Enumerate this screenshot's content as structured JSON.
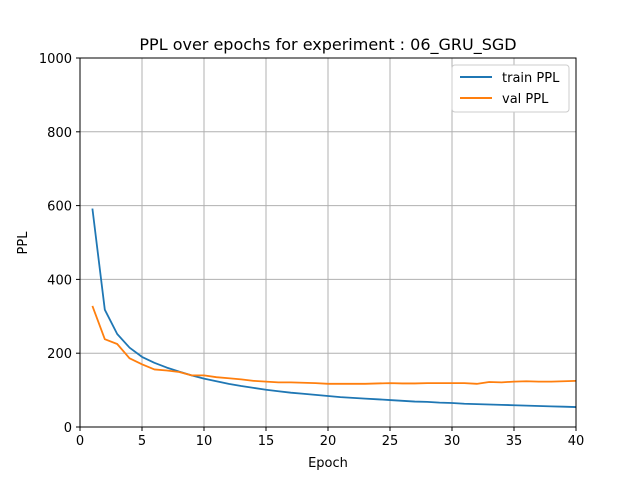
{
  "chart_data": {
    "type": "line",
    "title": "PPL over epochs for experiment : 06_GRU_SGD",
    "xlabel": "Epoch",
    "ylabel": "PPL",
    "xlim": [
      0,
      40
    ],
    "ylim": [
      0,
      1000
    ],
    "xticks": [
      0,
      5,
      10,
      15,
      20,
      25,
      30,
      35,
      40
    ],
    "yticks": [
      0,
      200,
      400,
      600,
      800,
      1000
    ],
    "grid": true,
    "legend_position": "top-right",
    "x": [
      1,
      2,
      3,
      4,
      5,
      6,
      7,
      8,
      9,
      10,
      11,
      12,
      13,
      14,
      15,
      16,
      17,
      18,
      19,
      20,
      21,
      22,
      23,
      24,
      25,
      26,
      27,
      28,
      29,
      30,
      31,
      32,
      33,
      34,
      35,
      36,
      37,
      38,
      39,
      40
    ],
    "series": [
      {
        "name": "train PPL",
        "color": "#1f77b4",
        "values": [
          592,
          318,
          252,
          215,
          190,
          174,
          161,
          150,
          140,
          131,
          124,
          117,
          111,
          106,
          101,
          97,
          93,
          90,
          87,
          84,
          81,
          79,
          77,
          75,
          73,
          71,
          69,
          68,
          66,
          65,
          63,
          62,
          61,
          60,
          59,
          58,
          57,
          56,
          55,
          54
        ]
      },
      {
        "name": "val PPL",
        "color": "#ff7f0e",
        "values": [
          328,
          238,
          225,
          186,
          170,
          156,
          153,
          149,
          140,
          140,
          135,
          132,
          129,
          125,
          123,
          121,
          121,
          120,
          119,
          117,
          117,
          117,
          117,
          118,
          119,
          118,
          118,
          119,
          119,
          119,
          119,
          117,
          122,
          121,
          123,
          124,
          123,
          123,
          124,
          125
        ]
      }
    ]
  }
}
